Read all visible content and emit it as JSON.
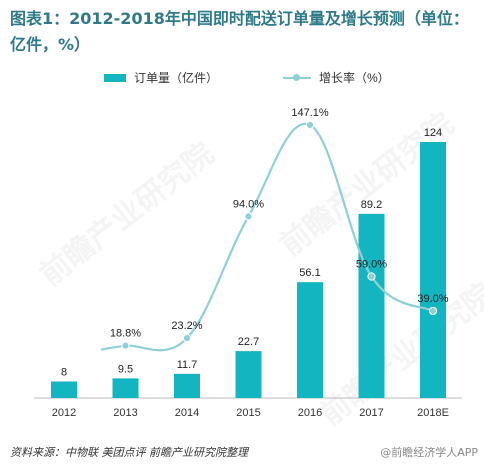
{
  "title": "图表1：2012-2018年中国即时配送订单量及增长预测（单位：亿件，%）",
  "footer": "资料来源：中物联 美团点评 前瞻产业研究院整理",
  "brand": "@前瞻经济学人APP",
  "watermark": "前瞻产业研究院",
  "colors": {
    "bar": "#13b5c1",
    "line": "#8fd0d6",
    "title": "#2f7a86"
  },
  "chart_data": {
    "type": "bar",
    "categories": [
      "2012",
      "2013",
      "2014",
      "2015",
      "2016",
      "2017",
      "2018E"
    ],
    "series": [
      {
        "name": "订单量（亿件）",
        "type": "bar",
        "values": [
          8,
          9.5,
          11.7,
          22.7,
          56.1,
          89.2,
          124
        ],
        "labels": [
          "8",
          "9.5",
          "11.7",
          "22.7",
          "56.1",
          "89.2",
          "124"
        ]
      },
      {
        "name": "增长率（%）",
        "type": "line",
        "values": [
          null,
          18.8,
          23.2,
          94.0,
          147.1,
          59.0,
          39.0
        ],
        "labels": [
          "",
          "18.8%",
          "23.2%",
          "94.0%",
          "147.1%",
          "59.0%",
          "39.0%"
        ]
      }
    ],
    "legend": "top-center",
    "grid": false
  }
}
